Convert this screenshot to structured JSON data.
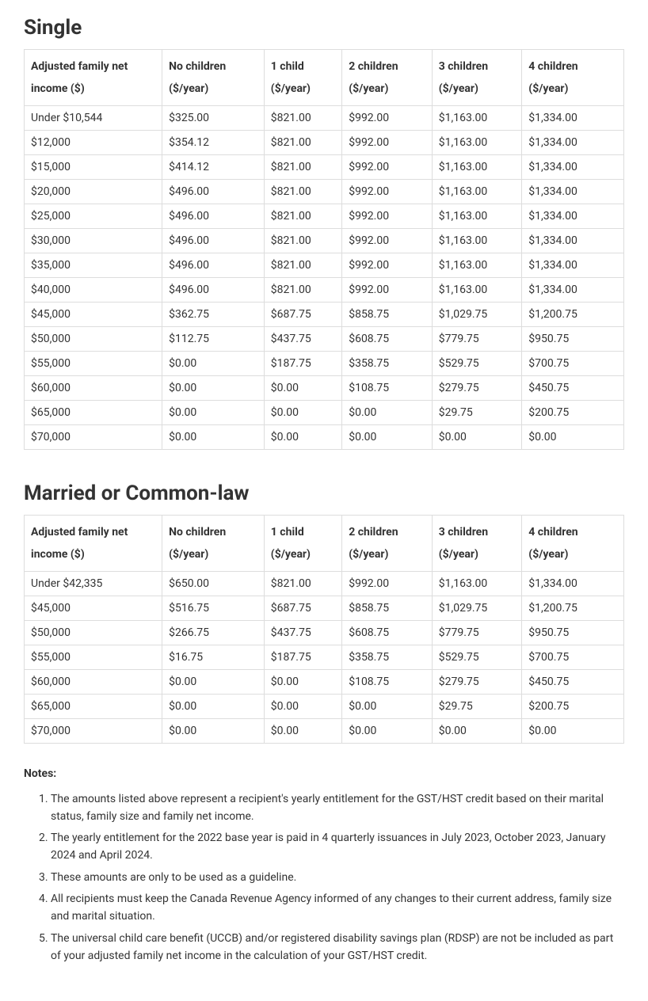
{
  "single": {
    "heading": "Single",
    "columns": [
      "Adjusted family net income ($)",
      "No children ($/year)",
      "1 child ($/year)",
      "2 children ($/year)",
      "3 children ($/year)",
      "4 children ($/year)"
    ],
    "rows": [
      [
        "Under $10,544",
        "$325.00",
        "$821.00",
        "$992.00",
        "$1,163.00",
        "$1,334.00"
      ],
      [
        "$12,000",
        "$354.12",
        "$821.00",
        "$992.00",
        "$1,163.00",
        "$1,334.00"
      ],
      [
        "$15,000",
        "$414.12",
        "$821.00",
        "$992.00",
        "$1,163.00",
        "$1,334.00"
      ],
      [
        "$20,000",
        "$496.00",
        "$821.00",
        "$992.00",
        "$1,163.00",
        "$1,334.00"
      ],
      [
        "$25,000",
        "$496.00",
        "$821.00",
        "$992.00",
        "$1,163.00",
        "$1,334.00"
      ],
      [
        "$30,000",
        "$496.00",
        "$821.00",
        "$992.00",
        "$1,163.00",
        "$1,334.00"
      ],
      [
        "$35,000",
        "$496.00",
        "$821.00",
        "$992.00",
        "$1,163.00",
        "$1,334.00"
      ],
      [
        "$40,000",
        "$496.00",
        "$821.00",
        "$992.00",
        "$1,163.00",
        "$1,334.00"
      ],
      [
        "$45,000",
        "$362.75",
        "$687.75",
        "$858.75",
        "$1,029.75",
        "$1,200.75"
      ],
      [
        "$50,000",
        "$112.75",
        "$437.75",
        "$608.75",
        "$779.75",
        "$950.75"
      ],
      [
        "$55,000",
        "$0.00",
        "$187.75",
        "$358.75",
        "$529.75",
        "$700.75"
      ],
      [
        "$60,000",
        "$0.00",
        "$0.00",
        "$108.75",
        "$279.75",
        "$450.75"
      ],
      [
        "$65,000",
        "$0.00",
        "$0.00",
        "$0.00",
        "$29.75",
        "$200.75"
      ],
      [
        "$70,000",
        "$0.00",
        "$0.00",
        "$0.00",
        "$0.00",
        "$0.00"
      ]
    ]
  },
  "married": {
    "heading": "Married or Common-law",
    "columns": [
      "Adjusted family net income ($)",
      "No children ($/year)",
      "1 child ($/year)",
      "2 children ($/year)",
      "3 children ($/year)",
      "4 children ($/year)"
    ],
    "rows": [
      [
        "Under $42,335",
        "$650.00",
        "$821.00",
        "$992.00",
        "$1,163.00",
        "$1,334.00"
      ],
      [
        "$45,000",
        "$516.75",
        "$687.75",
        "$858.75",
        "$1,029.75",
        "$1,200.75"
      ],
      [
        "$50,000",
        "$266.75",
        "$437.75",
        "$608.75",
        "$779.75",
        "$950.75"
      ],
      [
        "$55,000",
        "$16.75",
        "$187.75",
        "$358.75",
        "$529.75",
        "$700.75"
      ],
      [
        "$60,000",
        "$0.00",
        "$0.00",
        "$108.75",
        "$279.75",
        "$450.75"
      ],
      [
        "$65,000",
        "$0.00",
        "$0.00",
        "$0.00",
        "$29.75",
        "$200.75"
      ],
      [
        "$70,000",
        "$0.00",
        "$0.00",
        "$0.00",
        "$0.00",
        "$0.00"
      ]
    ]
  },
  "notes": {
    "heading": "Notes:",
    "items": [
      "The amounts listed above represent a recipient's yearly entitlement for the GST/HST credit based on their marital status, family size and family net income.",
      "The yearly entitlement for the 2022 base year is paid in 4 quarterly issuances in July 2023, October 2023, January 2024 and April 2024.",
      "These amounts are only to be used as a guideline.",
      "All recipients must keep the Canada Revenue Agency informed of any changes to their current address, family size and marital situation.",
      "The universal child care benefit (UCCB) and/or registered disability savings plan (RDSP) are not be included as part of your adjusted family net income in the calculation of your GST/HST credit."
    ]
  },
  "style": {
    "border_color": "#dddddd",
    "text_color": "#333333",
    "background_color": "#ffffff",
    "heading_fontsize_pt": 20,
    "body_fontsize_pt": 10.5,
    "col_widths_pct": [
      23,
      17,
      13,
      15,
      15,
      17
    ]
  }
}
